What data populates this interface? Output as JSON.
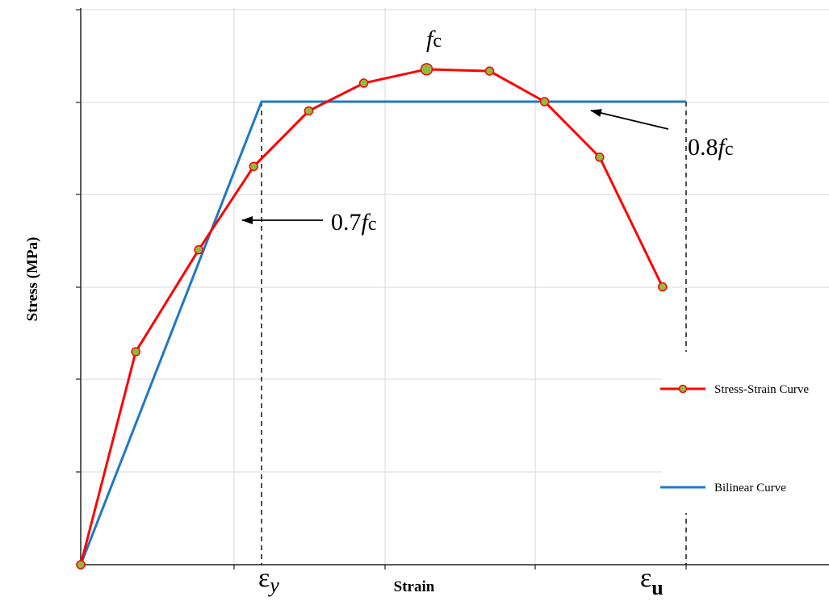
{
  "chart_data": {
    "type": "line",
    "xlabel": "Strain",
    "ylabel": "Stress (MPa)",
    "grid": true,
    "legend_placement": "bottom-right",
    "x_special_ticks": [
      {
        "name": "eps-y",
        "base": "ε",
        "sub": "y",
        "sub_style": "italic",
        "x": 2.3
      },
      {
        "name": "eps-u",
        "base": "ε",
        "sub": "u",
        "sub_style": "bold",
        "x": 7.7
      }
    ],
    "series": [
      {
        "name": "Stress-Strain Curve",
        "color": "#ff0000",
        "marker_fill": "#8fbc3f",
        "marker_stroke": "#ff0000",
        "x": [
          0,
          0.7,
          1.5,
          2.2,
          2.9,
          3.6,
          4.4,
          5.2,
          5.9,
          6.6,
          7.4
        ],
        "y": [
          0,
          2.3,
          3.4,
          4.3,
          4.9,
          5.2,
          5.35,
          5.33,
          5.0,
          4.4,
          3.0
        ],
        "peak_index": 6
      },
      {
        "name": "Bilinear Curve",
        "color": "#1f78c8",
        "x": [
          0,
          2.3,
          7.7
        ],
        "y": [
          0,
          5.0,
          5.0
        ]
      }
    ],
    "dashed_lines": [
      {
        "x": 2.3,
        "y_top": 5.0
      },
      {
        "x": 7.7,
        "y_top": 5.0
      }
    ],
    "annotations": [
      {
        "name": "fc-label",
        "prefix": "",
        "italic": "f",
        "suffix": "c"
      },
      {
        "name": "0.8fc-label",
        "prefix": "0.8",
        "italic": "f",
        "suffix": "c"
      },
      {
        "name": "0.7fc-label",
        "prefix": "0.7",
        "italic": "f",
        "suffix": "c"
      }
    ]
  }
}
